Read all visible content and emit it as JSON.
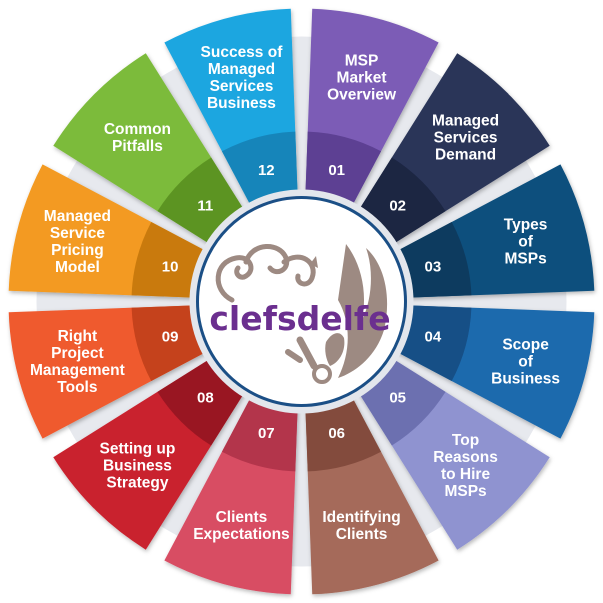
{
  "logo": {
    "text": "clefsdelfe"
  },
  "segments": [
    {
      "number": "01",
      "lines": [
        "MSP",
        "Market",
        "Overview"
      ],
      "color": "#7c5cb6",
      "dark": "#5d4193"
    },
    {
      "number": "02",
      "lines": [
        "Managed",
        "Services",
        "Demand"
      ],
      "color": "#2a3559",
      "dark": "#1c2543"
    },
    {
      "number": "03",
      "lines": [
        "Types",
        "of",
        "MSPs"
      ],
      "color": "#0e4f7d",
      "dark": "#083a5e"
    },
    {
      "number": "04",
      "lines": [
        "Scope",
        "of",
        "Business"
      ],
      "color": "#1e6aad",
      "dark": "#154f86"
    },
    {
      "number": "05",
      "lines": [
        "Top",
        "Reasons",
        "to Hire",
        "MSPs"
      ],
      "color": "#8f93d0",
      "dark": "#6c70b0"
    },
    {
      "number": "06",
      "lines": [
        "Identifying",
        "Clients"
      ],
      "color": "#a56a5a",
      "dark": "#834c3e"
    },
    {
      "number": "07",
      "lines": [
        "Clients",
        "Expectations"
      ],
      "color": "#d84d64",
      "dark": "#b3344b"
    },
    {
      "number": "08",
      "lines": [
        "Setting up",
        "Business",
        "Strategy"
      ],
      "color": "#c9202e",
      "dark": "#991520"
    },
    {
      "number": "09",
      "lines": [
        "Right",
        "Project",
        "Management",
        "Tools"
      ],
      "color": "#ef5a2d",
      "dark": "#c5421b"
    },
    {
      "number": "10",
      "lines": [
        "Managed",
        "Service",
        "Pricing",
        "Model"
      ],
      "color": "#f39a20",
      "dark": "#c97a0f"
    },
    {
      "number": "11",
      "lines": [
        "Common",
        "Pitfalls"
      ],
      "color": "#7cbb3a",
      "dark": "#5c9424"
    },
    {
      "number": "12",
      "lines": [
        "Success of",
        "Managed",
        "Services",
        "Business"
      ],
      "color": "#1ea6e0",
      "dark": "#1385ba"
    }
  ]
}
